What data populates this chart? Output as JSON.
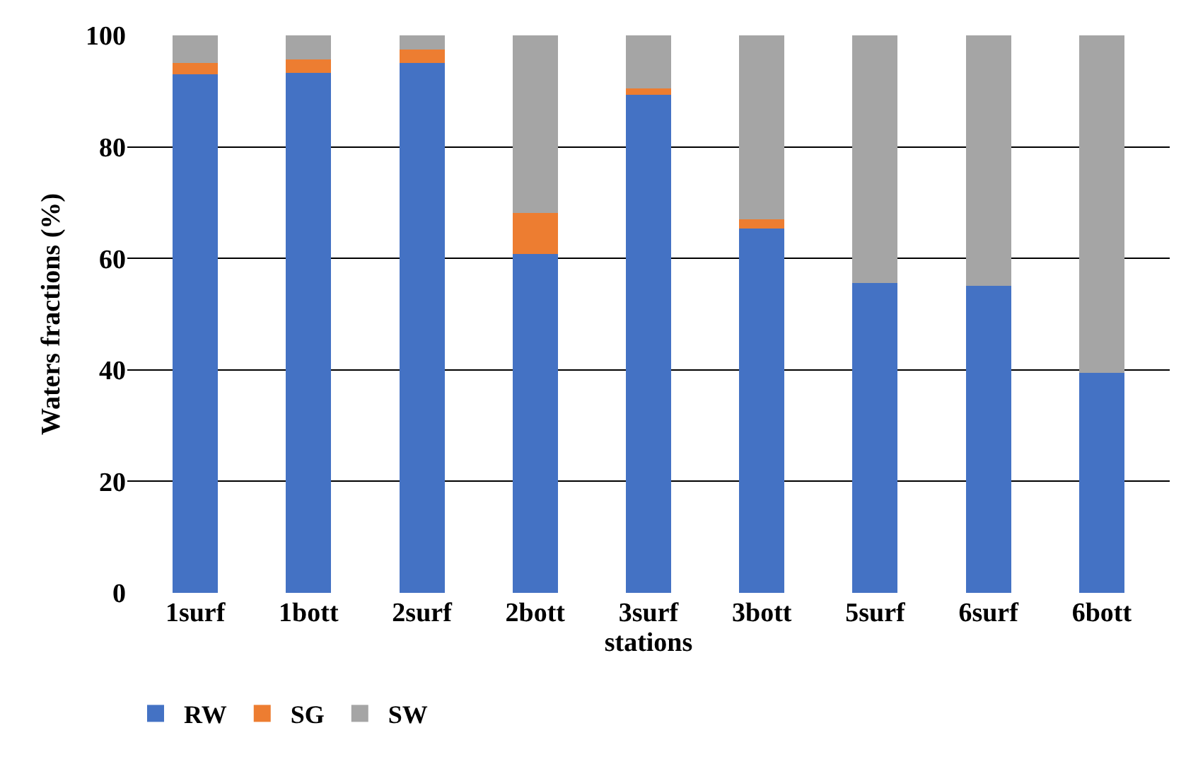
{
  "chart_data": {
    "type": "bar",
    "stacked": true,
    "xlabel": "stations",
    "ylabel": "Waters fractions (%)",
    "categories": [
      "1surf",
      "1bott",
      "2surf",
      "2bott",
      "3surf",
      "3bott",
      "5surf",
      "6surf",
      "6bott"
    ],
    "series": [
      {
        "name": "RW",
        "color": "#4472c4",
        "values": [
          93,
          93.3,
          95.1,
          60.8,
          89.3,
          65.4,
          55.6,
          55.1,
          39.5
        ]
      },
      {
        "name": "SG",
        "color": "#ed7d31",
        "values": [
          2.1,
          2.4,
          2.3,
          7.3,
          1.2,
          1.6,
          0,
          0,
          0
        ]
      },
      {
        "name": "SW",
        "color": "#a5a5a5",
        "values": [
          4.9,
          4.3,
          2.6,
          31.9,
          9.5,
          33,
          44.4,
          44.9,
          60.5
        ]
      }
    ],
    "ylim": [
      0,
      100
    ],
    "yticks": [
      0,
      20,
      40,
      60,
      80,
      100
    ],
    "grid": "y",
    "legend": "bottom left"
  }
}
